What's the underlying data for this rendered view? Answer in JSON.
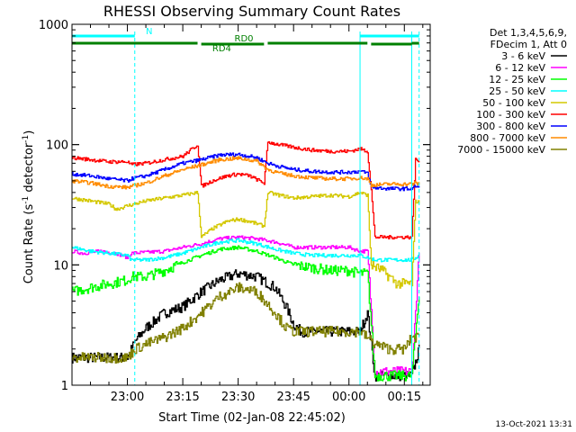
{
  "chart_data": {
    "type": "line",
    "title": "RHESSI Observing Summary Count Rates",
    "xlabel": "Start Time (02-Jan-08 22:45:02)",
    "ylabel_main": "Count Rate (s",
    "ylabel_sup1": "-1",
    "ylabel_mid": " detector",
    "ylabel_sup2": "-1",
    "ylabel_end": ")",
    "ylog": true,
    "ylim": [
      1,
      1000
    ],
    "xlim_minutes": [
      0,
      97
    ],
    "xticks": [
      {
        "minute": 15,
        "label": "23:00"
      },
      {
        "minute": 30,
        "label": "23:15"
      },
      {
        "minute": 45,
        "label": "23:30"
      },
      {
        "minute": 60,
        "label": "23:45"
      },
      {
        "minute": 75,
        "label": "00:00"
      },
      {
        "minute": 90,
        "label": "00:15"
      }
    ],
    "yticks": [
      {
        "value": 1,
        "label": "1"
      },
      {
        "value": 10,
        "label": "10"
      },
      {
        "value": 100,
        "label": "100"
      },
      {
        "value": 1000,
        "label": "1000"
      }
    ],
    "legend_header": [
      "Det 1,3,4,5,6,9,",
      "FDecim 1, Att 0"
    ],
    "legend_placement": "right",
    "series": [
      {
        "name": "3 - 6 keV",
        "color": "#000000",
        "points": [
          [
            0,
            1.7
          ],
          [
            15,
            1.7
          ],
          [
            17,
            2.3
          ],
          [
            20,
            3.0
          ],
          [
            25,
            4.0
          ],
          [
            30,
            4.5
          ],
          [
            35,
            6.0
          ],
          [
            40,
            7.5
          ],
          [
            45,
            8.5
          ],
          [
            50,
            8.0
          ],
          [
            55,
            6.5
          ],
          [
            58,
            4.5
          ],
          [
            60,
            3.2
          ],
          [
            62,
            2.8
          ],
          [
            70,
            2.8
          ],
          [
            75,
            2.8
          ],
          [
            78,
            2.8
          ],
          [
            80,
            4.0
          ],
          [
            82,
            1.2
          ],
          [
            90,
            1.2
          ],
          [
            92,
            1.2
          ],
          [
            94,
            2.0
          ]
        ]
      },
      {
        "name": "6 - 12 keV",
        "color": "#ff00ff",
        "points": [
          [
            0,
            13
          ],
          [
            3,
            12.5
          ],
          [
            8,
            13
          ],
          [
            12,
            12.5
          ],
          [
            15,
            11.5
          ],
          [
            16,
            12.5
          ],
          [
            25,
            13
          ],
          [
            30,
            14
          ],
          [
            35,
            15
          ],
          [
            40,
            16.5
          ],
          [
            45,
            17
          ],
          [
            50,
            16.5
          ],
          [
            55,
            15.5
          ],
          [
            60,
            14
          ],
          [
            65,
            14
          ],
          [
            70,
            14
          ],
          [
            75,
            14
          ],
          [
            78,
            13
          ],
          [
            80,
            13
          ],
          [
            82,
            1.3
          ],
          [
            90,
            1.3
          ],
          [
            92,
            1.3
          ],
          [
            94,
            13
          ]
        ]
      },
      {
        "name": "12 - 25 keV",
        "color": "#00ff00",
        "points": [
          [
            0,
            6
          ],
          [
            5,
            6.5
          ],
          [
            10,
            7
          ],
          [
            15,
            7.5
          ],
          [
            16,
            8
          ],
          [
            20,
            8
          ],
          [
            25,
            9
          ],
          [
            30,
            10.5
          ],
          [
            35,
            12
          ],
          [
            40,
            13.5
          ],
          [
            45,
            14
          ],
          [
            50,
            13
          ],
          [
            55,
            11.5
          ],
          [
            60,
            10
          ],
          [
            65,
            9.5
          ],
          [
            70,
            9
          ],
          [
            75,
            9
          ],
          [
            78,
            8.5
          ],
          [
            80,
            8.5
          ],
          [
            82,
            1.2
          ],
          [
            90,
            1.2
          ],
          [
            92,
            1.2
          ],
          [
            94,
            6
          ]
        ]
      },
      {
        "name": "25 - 50 keV",
        "color": "#00ffff",
        "points": [
          [
            0,
            14
          ],
          [
            5,
            13
          ],
          [
            10,
            12.5
          ],
          [
            15,
            12
          ],
          [
            16,
            11
          ],
          [
            20,
            11
          ],
          [
            25,
            11.5
          ],
          [
            30,
            12.5
          ],
          [
            35,
            14
          ],
          [
            40,
            15.5
          ],
          [
            45,
            16
          ],
          [
            50,
            15
          ],
          [
            55,
            13.5
          ],
          [
            60,
            12.5
          ],
          [
            65,
            12
          ],
          [
            70,
            12
          ],
          [
            75,
            12
          ],
          [
            78,
            12
          ],
          [
            80,
            11.5
          ],
          [
            82,
            11
          ],
          [
            86,
            11
          ],
          [
            90,
            11
          ],
          [
            92,
            11
          ],
          [
            94,
            12
          ]
        ]
      },
      {
        "name": "50 - 100 keV",
        "color": "#d4c800",
        "points": [
          [
            0,
            36
          ],
          [
            5,
            34
          ],
          [
            10,
            32
          ],
          [
            12,
            29
          ],
          [
            15,
            31
          ],
          [
            20,
            34
          ],
          [
            25,
            36
          ],
          [
            30,
            38
          ],
          [
            34,
            40
          ],
          [
            35,
            17
          ],
          [
            38,
            20
          ],
          [
            42,
            23
          ],
          [
            45,
            24
          ],
          [
            48,
            23
          ],
          [
            52,
            21
          ],
          [
            53,
            40
          ],
          [
            56,
            38
          ],
          [
            60,
            36
          ],
          [
            65,
            37
          ],
          [
            70,
            38
          ],
          [
            75,
            37
          ],
          [
            78,
            40
          ],
          [
            80,
            38
          ],
          [
            81,
            10
          ],
          [
            84,
            9
          ],
          [
            88,
            7
          ],
          [
            90,
            7
          ],
          [
            92,
            7
          ],
          [
            93,
            34
          ],
          [
            94,
            33
          ]
        ]
      },
      {
        "name": "100 - 300 keV",
        "color": "#ff0000",
        "points": [
          [
            0,
            78
          ],
          [
            5,
            75
          ],
          [
            10,
            72
          ],
          [
            15,
            72
          ],
          [
            16,
            68
          ],
          [
            20,
            70
          ],
          [
            25,
            75
          ],
          [
            30,
            80
          ],
          [
            34,
            100
          ],
          [
            35,
            45
          ],
          [
            38,
            50
          ],
          [
            42,
            55
          ],
          [
            45,
            57
          ],
          [
            48,
            55
          ],
          [
            52,
            48
          ],
          [
            53,
            105
          ],
          [
            56,
            100
          ],
          [
            60,
            95
          ],
          [
            65,
            90
          ],
          [
            70,
            88
          ],
          [
            75,
            88
          ],
          [
            78,
            92
          ],
          [
            80,
            88
          ],
          [
            81,
            42
          ],
          [
            82,
            17
          ],
          [
            86,
            17
          ],
          [
            90,
            17
          ],
          [
            92,
            17
          ],
          [
            93,
            75
          ],
          [
            94,
            72
          ]
        ]
      },
      {
        "name": "300 - 800 keV",
        "color": "#0000ff",
        "points": [
          [
            0,
            57
          ],
          [
            5,
            55
          ],
          [
            10,
            52
          ],
          [
            15,
            50
          ],
          [
            16,
            52
          ],
          [
            20,
            55
          ],
          [
            25,
            62
          ],
          [
            30,
            70
          ],
          [
            35,
            75
          ],
          [
            40,
            82
          ],
          [
            45,
            83
          ],
          [
            50,
            78
          ],
          [
            53,
            70
          ],
          [
            56,
            66
          ],
          [
            60,
            62
          ],
          [
            65,
            60
          ],
          [
            70,
            59
          ],
          [
            75,
            59
          ],
          [
            78,
            60
          ],
          [
            80,
            58
          ],
          [
            81,
            44
          ],
          [
            86,
            43
          ],
          [
            90,
            43
          ],
          [
            92,
            43
          ],
          [
            93,
            45
          ],
          [
            94,
            44
          ]
        ]
      },
      {
        "name": "800 - 7000 keV",
        "color": "#ff8c00",
        "points": [
          [
            0,
            50
          ],
          [
            5,
            48
          ],
          [
            10,
            45
          ],
          [
            15,
            44
          ],
          [
            16,
            45
          ],
          [
            20,
            48
          ],
          [
            25,
            55
          ],
          [
            30,
            62
          ],
          [
            35,
            68
          ],
          [
            40,
            75
          ],
          [
            45,
            77
          ],
          [
            50,
            73
          ],
          [
            53,
            62
          ],
          [
            56,
            58
          ],
          [
            60,
            55
          ],
          [
            65,
            53
          ],
          [
            70,
            52
          ],
          [
            75,
            52
          ],
          [
            78,
            53
          ],
          [
            80,
            52
          ],
          [
            81,
            46
          ],
          [
            86,
            47
          ],
          [
            90,
            47
          ],
          [
            92,
            47
          ],
          [
            93,
            48
          ],
          [
            94,
            47
          ]
        ]
      },
      {
        "name": "7000 - 15000 keV",
        "color": "#808000",
        "points": [
          [
            0,
            1.7
          ],
          [
            10,
            1.7
          ],
          [
            15,
            1.7
          ],
          [
            17,
            2.0
          ],
          [
            20,
            2.2
          ],
          [
            25,
            2.5
          ],
          [
            30,
            3.0
          ],
          [
            35,
            4.0
          ],
          [
            40,
            5.5
          ],
          [
            45,
            6.5
          ],
          [
            50,
            6.0
          ],
          [
            55,
            4.0
          ],
          [
            58,
            3.0
          ],
          [
            60,
            2.8
          ],
          [
            70,
            2.8
          ],
          [
            75,
            2.8
          ],
          [
            78,
            2.8
          ],
          [
            80,
            2.5
          ],
          [
            82,
            2.2
          ],
          [
            86,
            2.0
          ],
          [
            90,
            2.0
          ],
          [
            92,
            2.5
          ],
          [
            94,
            2.5
          ]
        ]
      }
    ],
    "flags": [
      {
        "name": "N",
        "color": "#00ffff",
        "level": 0.975,
        "segments": [
          [
            0,
            17
          ],
          [
            78,
            94
          ]
        ]
      },
      {
        "name": "RD0",
        "color": "#008000",
        "level": 0.965,
        "segments": [
          [
            0,
            34
          ],
          [
            53,
            80
          ],
          [
            92,
            94
          ]
        ]
      },
      {
        "name": "RD4",
        "color": "#008000",
        "level": 0.955,
        "segments": [
          [
            35,
            52
          ],
          [
            81,
            92
          ]
        ]
      }
    ],
    "vlines": [
      {
        "minute": 17,
        "color": "#00ffff",
        "style": "dashed"
      },
      {
        "minute": 78,
        "color": "#00ffff",
        "style": "solid"
      },
      {
        "minute": 92,
        "color": "#00ffff",
        "style": "solid"
      },
      {
        "minute": 94,
        "color": "#00ffff",
        "style": "dashed"
      }
    ]
  },
  "footer": {
    "timestamp": "13-Oct-2021 13:31"
  }
}
